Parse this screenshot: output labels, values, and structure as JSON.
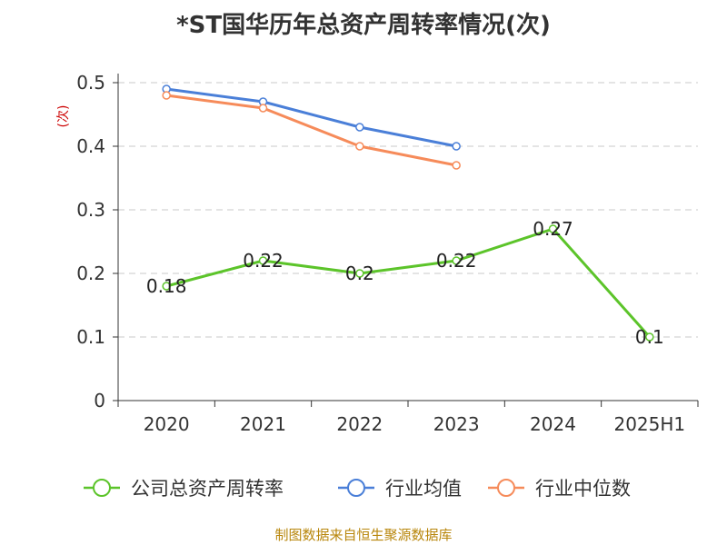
{
  "chart_data": {
    "type": "line",
    "title": "*ST国华历年总资产周转率情况(次)",
    "ylabel": "(次)",
    "xlabel": "",
    "categories": [
      "2020",
      "2021",
      "2022",
      "2023",
      "2024",
      "2025H1"
    ],
    "ylim": [
      0,
      0.5
    ],
    "yticks": [
      "0",
      "0.1",
      "0.2",
      "0.3",
      "0.4",
      "0.5"
    ],
    "grid": true,
    "legend_position": "bottom",
    "series": [
      {
        "name": "公司总资产周转率",
        "color": "#5cc42a",
        "values": [
          0.18,
          0.22,
          0.2,
          0.22,
          0.27,
          0.1
        ],
        "labels": [
          "0.18",
          "0.22",
          "0.2",
          "0.22",
          "0.27",
          "0.1"
        ]
      },
      {
        "name": "行业均值",
        "color": "#4a7fd8",
        "values": [
          0.49,
          0.47,
          0.43,
          0.4,
          null,
          null
        ]
      },
      {
        "name": "行业中位数",
        "color": "#f68b5a",
        "values": [
          0.48,
          0.46,
          0.4,
          0.37,
          null,
          null
        ]
      }
    ],
    "source": "制图数据来自恒生聚源数据库"
  }
}
